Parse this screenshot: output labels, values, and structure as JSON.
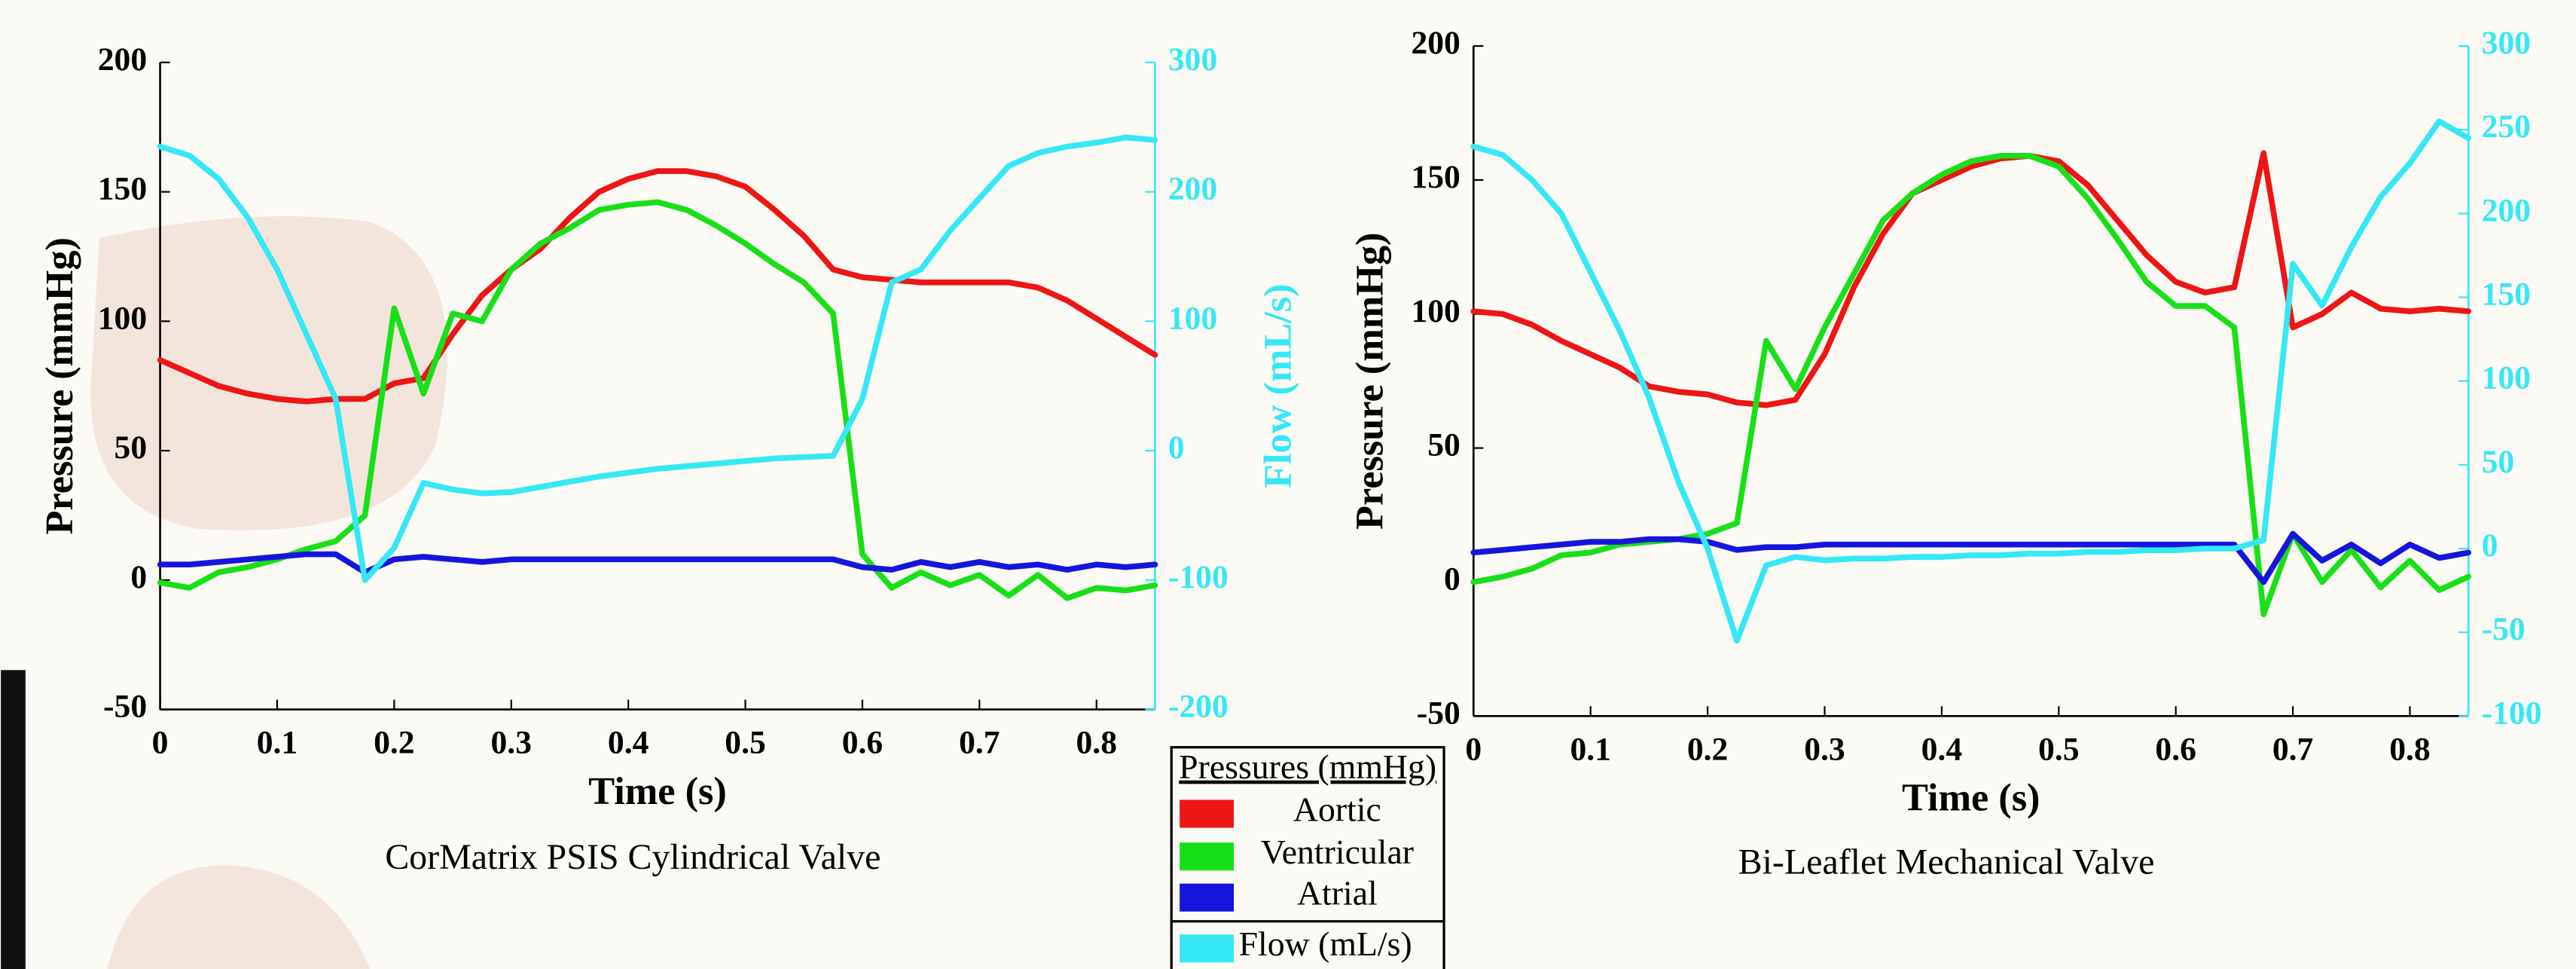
{
  "chart_data": [
    {
      "type": "line",
      "title": "CorMatrix PSIS Cylindrical Valve",
      "xlabel": "Time (s)",
      "ylabel": "Pressure (mmHg)",
      "y2label": "Flow (mL/s)",
      "legend_title": "Pressures (mmHg)",
      "xlim": [
        0,
        0.85
      ],
      "xticks": [
        0,
        0.1,
        0.2,
        0.3,
        0.4,
        0.5,
        0.6,
        0.7,
        0.8
      ],
      "ylim": [
        -50,
        200
      ],
      "yticks": [
        -50,
        0,
        50,
        100,
        150,
        200
      ],
      "y2lim": [
        -200,
        300
      ],
      "y2ticks": [
        -200,
        -100,
        0,
        100,
        200,
        300
      ],
      "x": [
        0,
        0.025,
        0.05,
        0.075,
        0.1,
        0.125,
        0.15,
        0.175,
        0.2,
        0.225,
        0.25,
        0.275,
        0.3,
        0.325,
        0.35,
        0.375,
        0.4,
        0.425,
        0.45,
        0.475,
        0.5,
        0.525,
        0.55,
        0.575,
        0.6,
        0.625,
        0.65,
        0.675,
        0.7,
        0.725,
        0.75,
        0.775,
        0.8,
        0.825,
        0.85
      ],
      "series": [
        {
          "name": "Aortic",
          "color": "#ee1515",
          "values": [
            85,
            80,
            75,
            72,
            70,
            69,
            70,
            70,
            76,
            78,
            95,
            110,
            120,
            128,
            140,
            150,
            155,
            158,
            158,
            156,
            152,
            143,
            133,
            120,
            117,
            116,
            115,
            115,
            115,
            115,
            113,
            108,
            101,
            94,
            87
          ]
        },
        {
          "name": "Ventricular",
          "color": "#18e018",
          "values": [
            -1,
            -3,
            3,
            5,
            8,
            12,
            15,
            25,
            105,
            72,
            103,
            100,
            120,
            130,
            136,
            143,
            145,
            146,
            143,
            137,
            130,
            122,
            115,
            103,
            10,
            -3,
            3,
            -2,
            2,
            -6,
            2,
            -7,
            -3,
            -4,
            -2
          ]
        },
        {
          "name": "Atrial",
          "color": "#1515dd",
          "values": [
            6,
            6,
            7,
            8,
            9,
            10,
            10,
            3,
            8,
            9,
            8,
            7,
            8,
            8,
            8,
            8,
            8,
            8,
            8,
            8,
            8,
            8,
            8,
            8,
            5,
            4,
            7,
            5,
            7,
            5,
            6,
            4,
            6,
            5,
            6
          ]
        },
        {
          "name": "Flow (mL/s)",
          "color": "#35e8f5",
          "axis": "y2",
          "values": [
            235,
            228,
            210,
            180,
            140,
            90,
            40,
            -100,
            -75,
            -25,
            -30,
            -33,
            -32,
            -28,
            -24,
            -20,
            -17,
            -14,
            -12,
            -10,
            -8,
            -6,
            -5,
            -4,
            40,
            130,
            140,
            170,
            195,
            220,
            230,
            235,
            238,
            242,
            240
          ]
        }
      ]
    },
    {
      "type": "line",
      "title": "Bi-Leaflet Mechanical Valve",
      "xlabel": "Time (s)",
      "ylabel": "Pressure (mmHg)",
      "xlim": [
        0,
        0.85
      ],
      "xticks": [
        0,
        0.1,
        0.2,
        0.3,
        0.4,
        0.5,
        0.6,
        0.7,
        0.8
      ],
      "ylim": [
        -50,
        200
      ],
      "yticks": [
        -50,
        0,
        50,
        100,
        150,
        200
      ],
      "y2lim": [
        -100,
        300
      ],
      "y2ticks": [
        -100,
        -50,
        0,
        50,
        100,
        150,
        200,
        250,
        300
      ],
      "x": [
        0,
        0.025,
        0.05,
        0.075,
        0.1,
        0.125,
        0.15,
        0.175,
        0.2,
        0.225,
        0.25,
        0.275,
        0.3,
        0.325,
        0.35,
        0.375,
        0.4,
        0.425,
        0.45,
        0.475,
        0.5,
        0.525,
        0.55,
        0.575,
        0.6,
        0.625,
        0.65,
        0.675,
        0.7,
        0.725,
        0.75,
        0.775,
        0.8,
        0.825,
        0.85
      ],
      "series": [
        {
          "color": "#ee1515",
          "values": [
            101,
            100,
            96,
            90,
            85,
            80,
            73,
            71,
            70,
            67,
            66,
            68,
            85,
            110,
            130,
            145,
            150,
            155,
            158,
            159,
            157,
            148,
            135,
            122,
            112,
            108,
            110,
            160,
            95,
            100,
            108,
            102,
            101,
            102,
            101
          ]
        },
        {
          "color": "#18e018",
          "values": [
            0,
            2,
            5,
            10,
            11,
            14,
            15,
            16,
            18,
            22,
            90,
            72,
            95,
            115,
            135,
            145,
            152,
            157,
            159,
            159,
            155,
            143,
            128,
            112,
            103,
            103,
            95,
            -12,
            18,
            0,
            12,
            -2,
            8,
            -3,
            2
          ]
        },
        {
          "color": "#1515dd",
          "values": [
            11,
            12,
            13,
            14,
            15,
            15,
            16,
            16,
            15,
            12,
            13,
            13,
            14,
            14,
            14,
            14,
            14,
            14,
            14,
            14,
            14,
            14,
            14,
            14,
            14,
            14,
            14,
            0,
            18,
            8,
            14,
            7,
            14,
            9,
            11
          ]
        },
        {
          "color": "#35e8f5",
          "axis": "y2",
          "values": [
            240,
            235,
            220,
            200,
            165,
            130,
            90,
            40,
            0,
            -55,
            -10,
            -5,
            -7,
            -6,
            -6,
            -5,
            -5,
            -4,
            -4,
            -3,
            -3,
            -2,
            -2,
            -1,
            -1,
            0,
            0,
            5,
            170,
            145,
            180,
            210,
            230,
            255,
            245
          ]
        }
      ]
    }
  ]
}
